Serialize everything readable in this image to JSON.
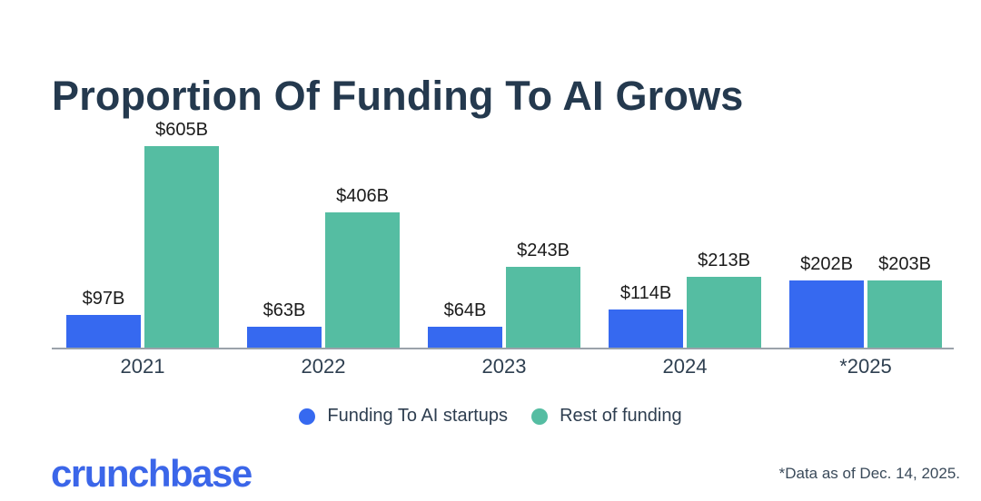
{
  "title": "Proportion Of Funding To AI Grows",
  "chart_data": {
    "type": "bar",
    "title": "Proportion Of Funding To AI Grows",
    "categories": [
      "2021",
      "2022",
      "2023",
      "2024",
      "*2025"
    ],
    "series": [
      {
        "name": "Funding To AI startups",
        "color": "#3669F0",
        "values": [
          97,
          63,
          64,
          114,
          202
        ],
        "labels": [
          "$97B",
          "$63B",
          "$64B",
          "$114B",
          "$202B"
        ]
      },
      {
        "name": "Rest of funding",
        "color": "#55BDA2",
        "values": [
          605,
          406,
          243,
          213,
          203
        ],
        "labels": [
          "$605B",
          "$406B",
          "$243B",
          "$213B",
          "$203B"
        ]
      }
    ],
    "xlabel": "",
    "ylabel": "",
    "ylim": [
      0,
      650
    ],
    "grid": false,
    "legend_position": "bottom",
    "value_labels_shown": true
  },
  "legend": {
    "items": [
      {
        "label": "Funding To AI startups",
        "color": "#3669F0"
      },
      {
        "label": "Rest of funding",
        "color": "#55BDA2"
      }
    ]
  },
  "footer": {
    "logo_text": "crunchbase",
    "note": "*Data as of Dec. 14, 2025."
  },
  "colors": {
    "title": "#24394E",
    "axis_line": "#9BA2AA",
    "value_label": "#1B1B1B",
    "year_label": "#2E3F50",
    "logo_blue": "#3B66E9"
  }
}
